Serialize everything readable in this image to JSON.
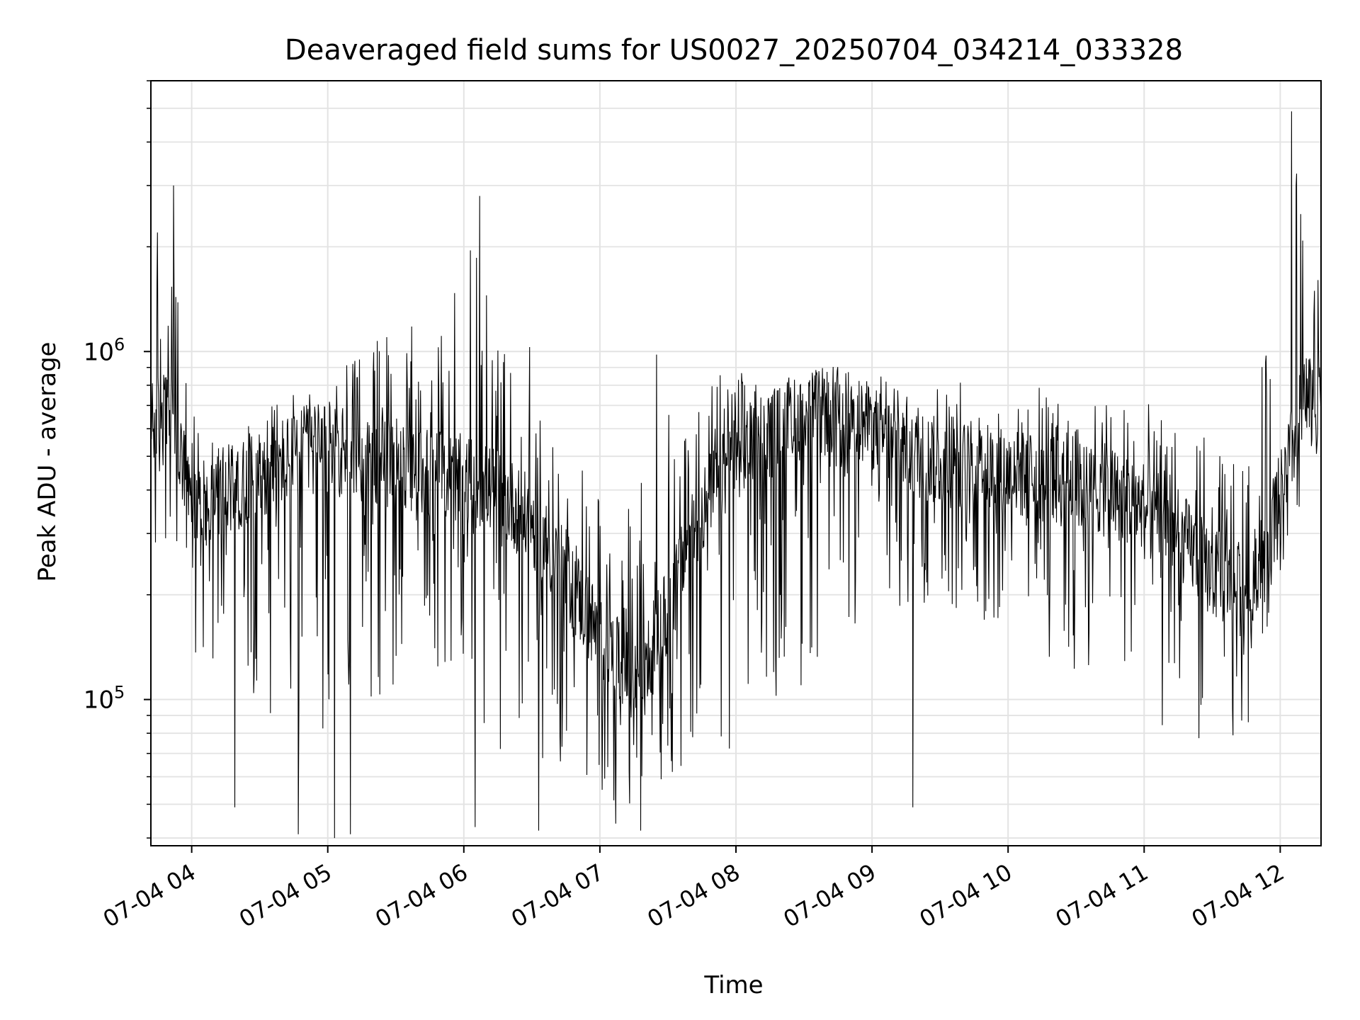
{
  "chart_data": {
    "type": "line",
    "title": "Deaveraged field sums for US0027_20250704_034214_033328",
    "xlabel": "Time",
    "ylabel": "Peak ADU - average",
    "yscale": "log",
    "grid": true,
    "xlim": [
      "2025-07-04 03:42",
      "2025-07-04 12:18"
    ],
    "ylim": [
      38000,
      6000000
    ],
    "x_ticks": [
      "07-04 04",
      "07-04 05",
      "07-04 06",
      "07-04 07",
      "07-04 08",
      "07-04 09",
      "07-04 10",
      "07-04 11",
      "07-04 12"
    ],
    "y_ticks": [
      {
        "value": 100000,
        "base": "10",
        "exp": "5"
      },
      {
        "value": 1000000,
        "base": "10",
        "exp": "6"
      }
    ],
    "series": [
      {
        "color": "#000000",
        "x": [
          "2025-07-04 03:42",
          "2025-07-04 03:50",
          "2025-07-04 04:00",
          "2025-07-04 04:15",
          "2025-07-04 04:30",
          "2025-07-04 04:45",
          "2025-07-04 05:00",
          "2025-07-04 05:15",
          "2025-07-04 05:30",
          "2025-07-04 05:45",
          "2025-07-04 06:00",
          "2025-07-04 06:15",
          "2025-07-04 06:30",
          "2025-07-04 06:45",
          "2025-07-04 07:00",
          "2025-07-04 07:15",
          "2025-07-04 07:30",
          "2025-07-04 07:45",
          "2025-07-04 08:00",
          "2025-07-04 08:15",
          "2025-07-04 08:30",
          "2025-07-04 08:45",
          "2025-07-04 09:00",
          "2025-07-04 09:15",
          "2025-07-04 09:30",
          "2025-07-04 09:45",
          "2025-07-04 10:00",
          "2025-07-04 10:15",
          "2025-07-04 10:30",
          "2025-07-04 10:45",
          "2025-07-04 11:00",
          "2025-07-04 11:15",
          "2025-07-04 11:30",
          "2025-07-04 11:45",
          "2025-07-04 12:00",
          "2025-07-04 12:10",
          "2025-07-04 12:18"
        ],
        "typical": [
          600000,
          700000,
          350000,
          400000,
          450000,
          500000,
          520000,
          500000,
          470000,
          450000,
          430000,
          400000,
          320000,
          230000,
          150000,
          110000,
          180000,
          350000,
          500000,
          580000,
          650000,
          680000,
          600000,
          520000,
          480000,
          470000,
          450000,
          430000,
          410000,
          390000,
          360000,
          300000,
          230000,
          200000,
          380000,
          700000,
          800000
        ],
        "lows": [
          250000,
          280000,
          140000,
          110000,
          95000,
          70000,
          60000,
          80000,
          110000,
          130000,
          100000,
          70000,
          62000,
          55000,
          52000,
          50000,
          55000,
          60000,
          75000,
          90000,
          110000,
          140000,
          160000,
          170000,
          180000,
          150000,
          140000,
          130000,
          120000,
          110000,
          90000,
          75000,
          70000,
          80000,
          230000,
          300000,
          380000
        ],
        "highs": [
          2400000,
          2900000,
          700000,
          620000,
          690000,
          760000,
          820000,
          1050000,
          1100000,
          800000,
          2600000,
          1200000,
          850000,
          560000,
          420000,
          430000,
          900000,
          850000,
          870000,
          880000,
          900000,
          880000,
          860000,
          840000,
          830000,
          820000,
          810000,
          790000,
          770000,
          750000,
          720000,
          650000,
          560000,
          520000,
          1800000,
          4900000,
          1400000
        ],
        "spike_peaks": [
          {
            "x": "2025-07-04 03:52",
            "y": 3000000
          },
          {
            "x": "2025-07-04 05:26",
            "y": 1100000
          },
          {
            "x": "2025-07-04 05:37",
            "y": 1180000
          },
          {
            "x": "2025-07-04 06:07",
            "y": 2800000
          },
          {
            "x": "2025-07-04 06:10",
            "y": 1450000
          },
          {
            "x": "2025-07-04 06:29",
            "y": 1030000
          },
          {
            "x": "2025-07-04 07:25",
            "y": 980000
          },
          {
            "x": "2025-07-04 12:05",
            "y": 4900000
          },
          {
            "x": "2025-07-04 12:07",
            "y": 3000000
          }
        ],
        "spike_dips": [
          {
            "x": "2025-07-04 04:19",
            "y": 49000
          },
          {
            "x": "2025-07-04 04:47",
            "y": 41000
          },
          {
            "x": "2025-07-04 05:03",
            "y": 40000
          },
          {
            "x": "2025-07-04 05:10",
            "y": 41000
          },
          {
            "x": "2025-07-04 06:05",
            "y": 43000
          },
          {
            "x": "2025-07-04 06:33",
            "y": 42000
          },
          {
            "x": "2025-07-04 07:07",
            "y": 44000
          },
          {
            "x": "2025-07-04 07:18",
            "y": 42000
          },
          {
            "x": "2025-07-04 09:18",
            "y": 49000
          }
        ]
      }
    ]
  }
}
